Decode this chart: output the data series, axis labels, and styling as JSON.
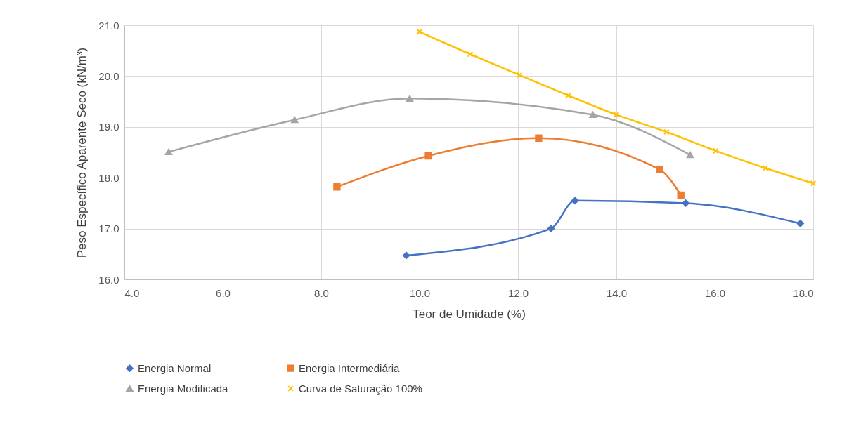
{
  "chart_data": {
    "type": "line",
    "xlabel": "Teor de Umidade (%)",
    "ylabel": "Peso Específico Aparente Seco (kN/m³)",
    "xlim": [
      4,
      18
    ],
    "ylim": [
      16,
      21
    ],
    "xticks": [
      {
        "value": 4,
        "label": "4.0"
      },
      {
        "value": 6,
        "label": "6.0"
      },
      {
        "value": 8,
        "label": "8.0"
      },
      {
        "value": 10,
        "label": "10.0"
      },
      {
        "value": 12,
        "label": "12.0"
      },
      {
        "value": 14,
        "label": "14.0"
      },
      {
        "value": 16,
        "label": "16.0"
      },
      {
        "value": 18,
        "label": "18.0"
      }
    ],
    "yticks": [
      {
        "value": 16,
        "label": "16.0"
      },
      {
        "value": 17,
        "label": "17.0"
      },
      {
        "value": 18,
        "label": "18.0"
      },
      {
        "value": 19,
        "label": "19.0"
      },
      {
        "value": 20,
        "label": "20.0"
      },
      {
        "value": 21,
        "label": "21.0"
      }
    ],
    "grid": true,
    "legend": "bottom",
    "series": [
      {
        "name": "Energia Normal",
        "color": "#4472c4",
        "marker": "diamond",
        "x": [
          9.73,
          12.67,
          13.16,
          15.41,
          17.74
        ],
        "values": [
          16.47,
          17.0,
          17.55,
          17.5,
          17.1
        ]
      },
      {
        "name": "Energia Intermediária",
        "color": "#ed7d31",
        "marker": "square",
        "x": [
          8.32,
          10.18,
          12.42,
          14.88,
          15.31
        ],
        "values": [
          17.82,
          18.43,
          18.78,
          18.16,
          17.66
        ]
      },
      {
        "name": "Energia Modificada",
        "color": "#a5a5a5",
        "marker": "triangle",
        "x": [
          4.9,
          7.46,
          9.8,
          13.52,
          15.5
        ],
        "values": [
          18.51,
          19.14,
          19.56,
          19.24,
          18.45
        ]
      },
      {
        "name": "Curva de Saturação 100%",
        "color": "#ffc000",
        "marker": "cross",
        "x": [
          10.0,
          11.03,
          12.03,
          13.02,
          14.0,
          15.02,
          16.02,
          17.03,
          18.0
        ],
        "values": [
          20.87,
          20.43,
          20.02,
          19.62,
          19.24,
          18.9,
          18.53,
          18.19,
          17.89
        ]
      }
    ]
  }
}
